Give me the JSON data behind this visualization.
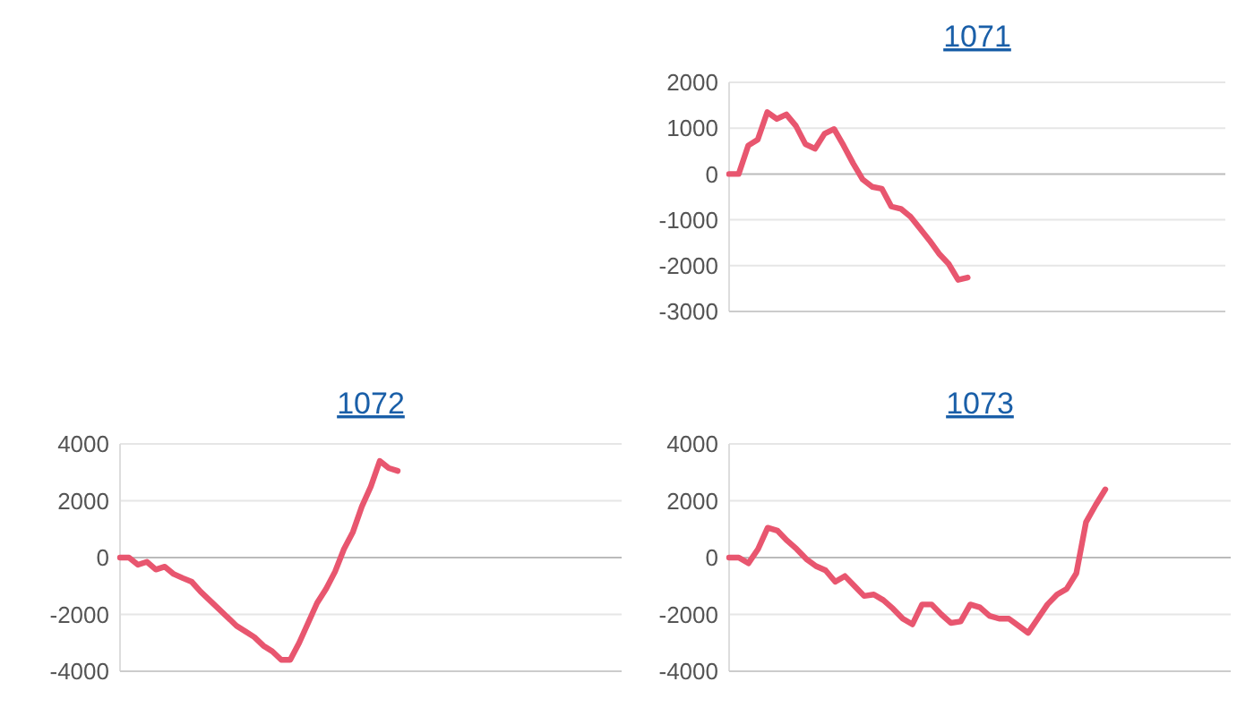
{
  "chart_data": [
    {
      "type": "line",
      "title": "1071",
      "categories": [
        null,
        null,
        null,
        null,
        null,
        null,
        null,
        null,
        null,
        null,
        null,
        null,
        null,
        null,
        null,
        null,
        null,
        null,
        null,
        null,
        null,
        null,
        null,
        null,
        null,
        null,
        null,
        null,
        null,
        null,
        null,
        null,
        null,
        null,
        null,
        null,
        null,
        null,
        null,
        null,
        null,
        null,
        null,
        null,
        null,
        null,
        null,
        null,
        null,
        null,
        null,
        null,
        null
      ],
      "series": [
        {
          "color": "#e8566f",
          "values": [
            0,
            0,
            620,
            750,
            1350,
            1200,
            1300,
            1050,
            650,
            550,
            880,
            980,
            620,
            230,
            -120,
            -280,
            -320,
            -710,
            -760,
            -930,
            -1190,
            -1450,
            -1740,
            -1960,
            -2310,
            -2260,
            null,
            null,
            null,
            null,
            null,
            null,
            null,
            null,
            null,
            null,
            null,
            null,
            null,
            null,
            null,
            null,
            null,
            null,
            null,
            null,
            null,
            null,
            null,
            null,
            null,
            null,
            null
          ]
        }
      ],
      "ylim": [
        -3000,
        2000
      ],
      "yticks": [
        -3000,
        -2000,
        -1000,
        0,
        1000,
        2000
      ],
      "grid": "y",
      "tick_labels": "y",
      "marker": "none"
    },
    {
      "type": "line",
      "title": "1072",
      "categories": [
        null,
        null,
        null,
        null,
        null,
        null,
        null,
        null,
        null,
        null,
        null,
        null,
        null,
        null,
        null,
        null,
        null,
        null,
        null,
        null,
        null,
        null,
        null,
        null,
        null,
        null,
        null,
        null,
        null,
        null,
        null,
        null,
        null,
        null,
        null,
        null,
        null,
        null,
        null,
        null,
        null,
        null,
        null,
        null,
        null,
        null,
        null,
        null,
        null,
        null,
        null,
        null,
        null,
        null,
        null,
        null,
        null
      ],
      "series": [
        {
          "color": "#e8566f",
          "values": [
            0,
            0,
            -250,
            -150,
            -420,
            -320,
            -580,
            -720,
            -850,
            -1200,
            -1500,
            -1800,
            -2100,
            -2400,
            -2600,
            -2800,
            -3100,
            -3300,
            -3600,
            -3600,
            -3000,
            -2300,
            -1600,
            -1100,
            -500,
            300,
            900,
            1800,
            2500,
            3400,
            3150,
            3050,
            null,
            null,
            null,
            null,
            null,
            null,
            null,
            null,
            null,
            null,
            null,
            null,
            null,
            null,
            null,
            null,
            null,
            null,
            null,
            null,
            null,
            null,
            null,
            null,
            null
          ]
        }
      ],
      "ylim": [
        -4000,
        4000
      ],
      "yticks": [
        -4000,
        -2000,
        0,
        2000,
        4000
      ],
      "grid": "y",
      "tick_labels": "y",
      "marker": "none"
    },
    {
      "type": "line",
      "title": "1073",
      "categories": [
        null,
        null,
        null,
        null,
        null,
        null,
        null,
        null,
        null,
        null,
        null,
        null,
        null,
        null,
        null,
        null,
        null,
        null,
        null,
        null,
        null,
        null,
        null,
        null,
        null,
        null,
        null,
        null,
        null,
        null,
        null,
        null,
        null,
        null,
        null,
        null,
        null,
        null,
        null,
        null,
        null,
        null,
        null,
        null,
        null,
        null,
        null,
        null,
        null,
        null,
        null,
        null,
        null
      ],
      "series": [
        {
          "color": "#e8566f",
          "values": [
            0,
            0,
            -200,
            300,
            1050,
            950,
            600,
            300,
            -50,
            -300,
            -450,
            -850,
            -650,
            -1000,
            -1350,
            -1300,
            -1500,
            -1800,
            -2150,
            -2350,
            -1650,
            -1650,
            -2000,
            -2300,
            -2250,
            -1650,
            -1750,
            -2050,
            -2150,
            -2150,
            -2400,
            -2650,
            -2150,
            -1650,
            -1300,
            -1100,
            -550,
            1250,
            1850,
            2400,
            null,
            null,
            null,
            null,
            null,
            null,
            null,
            null,
            null,
            null,
            null,
            null,
            null
          ]
        }
      ],
      "ylim": [
        -4000,
        4000
      ],
      "yticks": [
        -4000,
        -2000,
        0,
        2000,
        4000
      ],
      "grid": "y",
      "tick_labels": "y",
      "marker": "none"
    }
  ]
}
